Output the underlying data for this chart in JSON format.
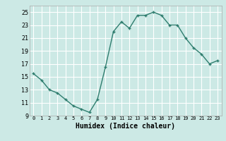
{
  "x": [
    0,
    1,
    2,
    3,
    4,
    5,
    6,
    7,
    8,
    9,
    10,
    11,
    12,
    13,
    14,
    15,
    16,
    17,
    18,
    19,
    20,
    21,
    22,
    23
  ],
  "y": [
    15.5,
    14.5,
    13.0,
    12.5,
    11.5,
    10.5,
    10.0,
    9.5,
    11.5,
    16.5,
    22.0,
    23.5,
    22.5,
    24.5,
    24.5,
    25.0,
    24.5,
    23.0,
    23.0,
    21.0,
    19.5,
    18.5,
    17.0,
    17.5
  ],
  "xlim": [
    -0.5,
    23.5
  ],
  "ylim": [
    9,
    26
  ],
  "yticks": [
    9,
    11,
    13,
    15,
    17,
    19,
    21,
    23,
    25
  ],
  "xtick_labels": [
    "0",
    "1",
    "2",
    "3",
    "4",
    "5",
    "6",
    "7",
    "8",
    "9",
    "10",
    "11",
    "12",
    "13",
    "14",
    "15",
    "16",
    "17",
    "18",
    "19",
    "20",
    "21",
    "22",
    "23"
  ],
  "xlabel": "Humidex (Indice chaleur)",
  "line_color": "#2e7d6e",
  "bg_color": "#cce9e5",
  "grid_color": "#e8e8e8",
  "marker": "+",
  "linewidth": 1.2
}
